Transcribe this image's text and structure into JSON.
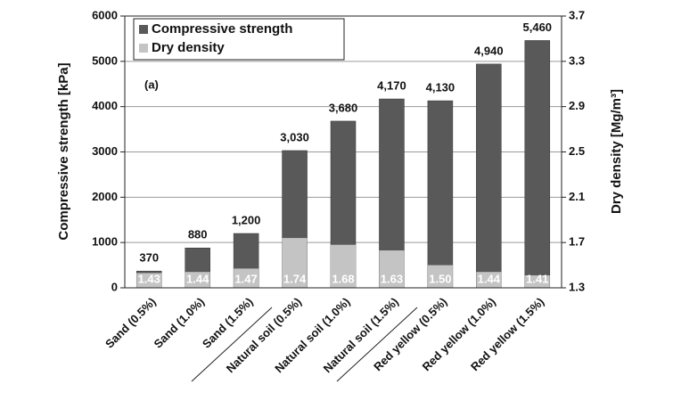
{
  "chart_data": {
    "type": "bar",
    "annotation": "(a)",
    "y_label": "Compressive strength [kPa]",
    "y2_label": "Dry density [Mg/m³]",
    "categories": [
      "Sand (0.5%)",
      "Sand (1.0%)",
      "Sand (1.5%)",
      "Natural soil (0.5%)",
      "Natural soil (1.0%)",
      "Natural soil (1.5%)",
      "Red yellow (0.5%)",
      "Red yellow (1.0%)",
      "Red yellow (1.5%)"
    ],
    "series": [
      {
        "name": "Compressive strength",
        "color": "#595959",
        "values": [
          370,
          880,
          1200,
          3030,
          3680,
          4170,
          4130,
          4940,
          5460
        ],
        "value_labels": [
          "370",
          "880",
          "1,200",
          "3,030",
          "3,680",
          "4,170",
          "4,130",
          "4,940",
          "5,460"
        ]
      },
      {
        "name": "Dry density",
        "color": "#c4c4c4",
        "axis": "y2",
        "values": [
          1.43,
          1.44,
          1.47,
          1.74,
          1.68,
          1.63,
          1.5,
          1.44,
          1.41
        ],
        "value_labels": [
          "1.43",
          "1.44",
          "1.47",
          "1.74",
          "1.68",
          "1.63",
          "1.50",
          "1.44",
          "1.41"
        ]
      }
    ],
    "ylim": [
      0,
      6000
    ],
    "yticks": [
      0,
      1000,
      2000,
      3000,
      4000,
      5000,
      6000
    ],
    "y2lim": [
      1.3,
      3.7
    ],
    "y2ticks": [
      1.3,
      1.7,
      2.1,
      2.5,
      2.9,
      3.3,
      3.7
    ],
    "grid": true,
    "legend": "top-left"
  }
}
